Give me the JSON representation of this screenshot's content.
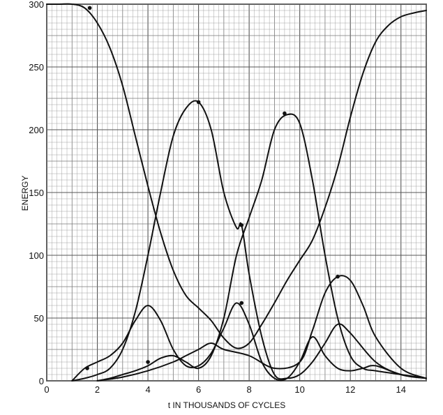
{
  "chart_data": {
    "type": "line",
    "title": "",
    "xlabel": "t IN THOUSANDS OF CYCLES",
    "ylabel": "ENERGY",
    "xlim": [
      0,
      15
    ],
    "ylim": [
      0,
      300
    ],
    "x_ticks": [
      "0",
      "2",
      "4",
      "6",
      "8",
      "10",
      "12",
      "14"
    ],
    "y_ticks": [
      "0",
      "50",
      "100",
      "150",
      "200",
      "250",
      "300"
    ],
    "grid": true,
    "legend": "none",
    "series": [
      {
        "x": [
          0,
          0.5,
          1,
          1.5,
          2,
          2.5,
          3,
          3.5,
          4,
          4.5,
          5,
          5.5,
          6,
          6.5,
          7,
          7.5,
          8,
          8.5,
          9,
          9.5,
          10,
          10.5,
          11,
          11.5,
          12,
          12.5,
          13,
          13.5,
          14,
          14.5,
          15
        ],
        "values": [
          300,
          300,
          300,
          297,
          285,
          265,
          235,
          195,
          155,
          118,
          88,
          68,
          58,
          48,
          34,
          26,
          30,
          45,
          62,
          80,
          96,
          112,
          138,
          170,
          210,
          245,
          270,
          283,
          290,
          293,
          295
        ],
        "markers": [
          [
            1.7,
            297
          ]
        ]
      },
      {
        "x": [
          1,
          1.5,
          2,
          2.5,
          3,
          3.5,
          4,
          4.5,
          5,
          5.5,
          6,
          6.5,
          7,
          7.5,
          7.7,
          8,
          8.5,
          9,
          9.5,
          10,
          10.5,
          11,
          11.5,
          12,
          13,
          14,
          15
        ],
        "values": [
          0,
          2,
          5,
          10,
          25,
          55,
          100,
          150,
          195,
          217,
          222,
          200,
          150,
          122,
          124,
          85,
          35,
          5,
          2,
          5,
          15,
          30,
          45,
          38,
          15,
          5,
          2
        ],
        "markers": [
          [
            6,
            222
          ],
          [
            7.7,
            124
          ]
        ]
      },
      {
        "x": [
          1,
          1.5,
          2,
          2.5,
          3,
          3.5,
          4,
          4.5,
          5,
          5.5,
          6,
          6.5,
          7,
          7.5,
          8,
          8.5,
          9,
          9.5,
          10,
          10.5,
          11,
          11.5,
          12,
          12.5,
          13,
          14,
          15
        ],
        "values": [
          0,
          10,
          15,
          20,
          30,
          48,
          60,
          48,
          25,
          12,
          12,
          22,
          42,
          62,
          45,
          15,
          2,
          2,
          15,
          35,
          20,
          10,
          8,
          10,
          12,
          5,
          2
        ],
        "markers": [
          [
            1.6,
            10
          ],
          [
            7.7,
            62
          ]
        ]
      },
      {
        "x": [
          2,
          2.5,
          3,
          3.5,
          4,
          4.5,
          5,
          5.5,
          6,
          6.5,
          7,
          7.5,
          8,
          8.5,
          9,
          9.5,
          10,
          10.5,
          11,
          11.5,
          12,
          12.5,
          13,
          14,
          15
        ],
        "values": [
          0,
          2,
          5,
          8,
          12,
          18,
          20,
          15,
          10,
          20,
          50,
          100,
          130,
          160,
          200,
          212,
          205,
          160,
          100,
          50,
          20,
          10,
          8,
          5,
          2
        ],
        "markers": [
          [
            9.4,
            213
          ]
        ]
      },
      {
        "x": [
          2,
          3,
          4,
          5,
          5.5,
          6,
          6.5,
          7,
          8,
          9,
          10,
          10.5,
          11,
          11.5,
          12,
          12.5,
          13,
          14,
          15
        ],
        "values": [
          0,
          3,
          8,
          15,
          20,
          25,
          30,
          25,
          20,
          10,
          15,
          40,
          70,
          83,
          80,
          60,
          35,
          10,
          2
        ],
        "markers": [
          [
            4,
            15
          ],
          [
            11.5,
            83
          ]
        ]
      }
    ]
  }
}
